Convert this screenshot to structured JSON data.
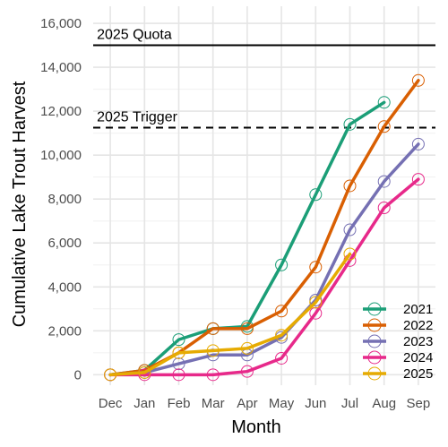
{
  "chart_data": {
    "type": "line",
    "xlabel": "Month",
    "ylabel": "Cumulative Lake Trout Harvest",
    "categories": [
      "Dec",
      "Jan",
      "Feb",
      "Mar",
      "Apr",
      "May",
      "Jun",
      "Jul",
      "Aug",
      "Sep"
    ],
    "ylim": [
      0,
      16000
    ],
    "yticks": [
      0,
      2000,
      4000,
      6000,
      8000,
      10000,
      12000,
      14000,
      16000
    ],
    "ytick_labels": [
      "0",
      "2,000",
      "4,000",
      "6,000",
      "8,000",
      "10,000",
      "12,000",
      "14,000",
      "16,000"
    ],
    "grid": true,
    "legend_position": "bottom-right",
    "reference_lines": [
      {
        "label": "2025 Quota",
        "value": 15000,
        "style": "solid"
      },
      {
        "label": "2025 Trigger",
        "value": 11250,
        "style": "dashed"
      }
    ],
    "series": [
      {
        "name": "2021",
        "color": "#1b9e77",
        "values": [
          0,
          200,
          1600,
          2100,
          2200,
          5000,
          8200,
          11400,
          12400,
          null
        ]
      },
      {
        "name": "2022",
        "color": "#d95f02",
        "values": [
          0,
          200,
          1000,
          2100,
          2100,
          2900,
          4900,
          8600,
          11300,
          13400
        ]
      },
      {
        "name": "2023",
        "color": "#7570b3",
        "values": [
          0,
          100,
          500,
          900,
          900,
          1700,
          3400,
          6600,
          8800,
          10500
        ]
      },
      {
        "name": "2024",
        "color": "#e7298a",
        "values": [
          0,
          0,
          0,
          0,
          150,
          750,
          2800,
          5200,
          7600,
          8900
        ]
      },
      {
        "name": "2025",
        "color": "#e6ab02",
        "values": [
          0,
          100,
          1000,
          1100,
          1200,
          1800,
          3300,
          5500,
          null,
          null
        ]
      }
    ]
  }
}
